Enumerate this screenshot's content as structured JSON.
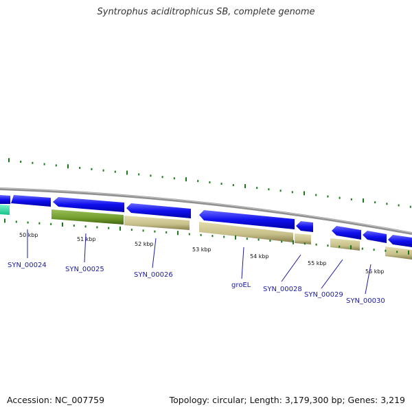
{
  "title": "Syntrophus aciditrophicus SB, complete genome",
  "footer": {
    "accession": "Accession: NC_007759",
    "topology": "Topology: circular; Length: 3,179,300 bp; Genes: 3,219"
  },
  "kbp_labels": [
    "50 kbp",
    "51 kbp",
    "52 kbp",
    "53 kbp",
    "54 kbp",
    "55 kbp",
    "56 kbp"
  ],
  "gene_labels": [
    "SYN_00024",
    "SYN_00025",
    "SYN_00026",
    "groEL",
    "SYN_00028",
    "SYN_00029",
    "SYN_00030"
  ],
  "colors": {
    "forward_cds": "#1010ee",
    "cds_khaki": "#c8c08a",
    "cds_green": "#6f9a2a",
    "teal": "#22dda0",
    "backbone": "#808080",
    "tick": "#1a7a1a",
    "label": "#1a1aa0"
  }
}
